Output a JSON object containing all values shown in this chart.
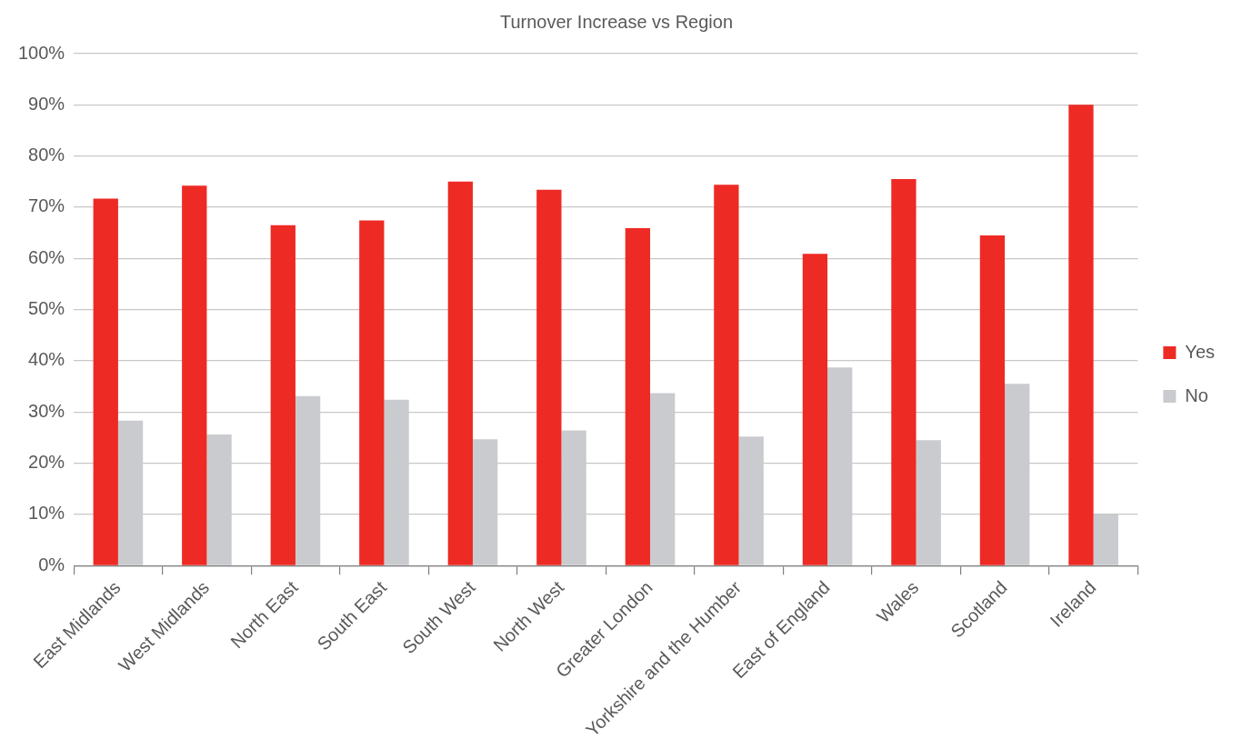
{
  "chart_data": {
    "type": "bar",
    "title": "Turnover Increase vs Region",
    "categories": [
      "East Midlands",
      "West Midlands",
      "North East",
      "South East",
      "South West",
      "North West",
      "Greater London",
      "Yorkshire and the Humber",
      "East of England",
      "Wales",
      "Scotland",
      "Ireland"
    ],
    "series": [
      {
        "name": "Yes",
        "color": "#ee2a24",
        "values": [
          71.7,
          74.2,
          66.5,
          67.4,
          75.0,
          73.4,
          65.9,
          74.4,
          60.9,
          75.5,
          64.5,
          90
        ]
      },
      {
        "name": "No",
        "color": "#c9cbcf",
        "values": [
          28.3,
          25.6,
          33.1,
          32.4,
          24.7,
          26.4,
          33.7,
          25.2,
          38.7,
          24.5,
          35.5,
          10
        ]
      }
    ],
    "ylim": [
      0,
      100
    ],
    "yticks": [
      {
        "value": 0,
        "label": "0%"
      },
      {
        "value": 10,
        "label": "10%"
      },
      {
        "value": 20,
        "label": "20%"
      },
      {
        "value": 30,
        "label": "30%"
      },
      {
        "value": 40,
        "label": "40%"
      },
      {
        "value": 50,
        "label": "50%"
      },
      {
        "value": 60,
        "label": "60%"
      },
      {
        "value": 70,
        "label": "70%"
      },
      {
        "value": 80,
        "label": "80%"
      },
      {
        "value": 90,
        "label": "90%"
      },
      {
        "value": 100,
        "label": "100%"
      }
    ],
    "grid": "y",
    "legend": "right"
  }
}
